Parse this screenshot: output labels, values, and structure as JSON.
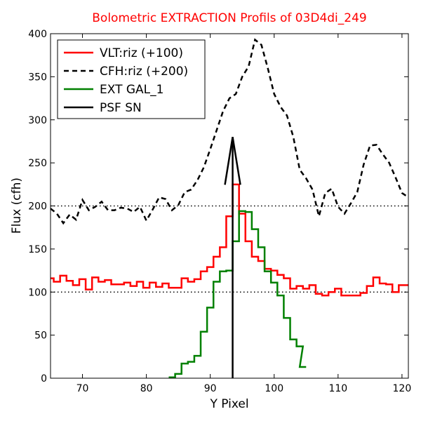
{
  "chart_data": {
    "type": "line",
    "title": "Bolometric EXTRACTION Profils of 03D4di_249",
    "xlabel": "Y Pixel",
    "ylabel": "Flux (cfh)",
    "xlim": [
      65,
      121
    ],
    "ylim": [
      0,
      400
    ],
    "x_ticks": [
      70,
      80,
      90,
      100,
      110,
      120
    ],
    "y_ticks": [
      0,
      50,
      100,
      150,
      200,
      250,
      300,
      350,
      400
    ],
    "grid": false,
    "legend_position": "top-left",
    "reference_lines": [
      {
        "y": 100,
        "style": "dotted",
        "color": "#000000"
      },
      {
        "y": 200,
        "style": "dotted",
        "color": "#000000"
      }
    ],
    "series": [
      {
        "name": "VLT:riz (+100)",
        "color": "#ff0000",
        "style": "steps",
        "x": [
          65,
          66,
          67,
          68,
          69,
          70,
          71,
          72,
          73,
          74,
          75,
          76,
          77,
          78,
          79,
          80,
          81,
          82,
          83,
          84,
          85,
          86,
          87,
          88,
          89,
          90,
          91,
          92,
          93,
          94,
          95,
          96,
          97,
          98,
          99,
          100,
          101,
          102,
          103,
          104,
          105,
          106,
          107,
          108,
          109,
          110,
          111,
          112,
          113,
          114,
          115,
          116,
          117,
          118,
          119,
          120,
          121
        ],
        "y": [
          116,
          112,
          119,
          113,
          108,
          115,
          103,
          117,
          112,
          114,
          109,
          109,
          111,
          107,
          112,
          105,
          111,
          106,
          110,
          105,
          105,
          116,
          112,
          115,
          124,
          129,
          141,
          152,
          188,
          225,
          191,
          159,
          141,
          136,
          127,
          125,
          120,
          116,
          104,
          107,
          104,
          108,
          98,
          96,
          100,
          104,
          96,
          96,
          96,
          99,
          107,
          117,
          110,
          109,
          100,
          108,
          108
        ]
      },
      {
        "name": "CFH:riz (+200)",
        "color": "#000000",
        "style": "dashed",
        "x": [
          65,
          66,
          67,
          68,
          69,
          70,
          71,
          72,
          73,
          74,
          75,
          76,
          77,
          78,
          79,
          80,
          81,
          82,
          83,
          84,
          85,
          86,
          87,
          88,
          89,
          90,
          91,
          92,
          93,
          94,
          95,
          96,
          97,
          98,
          99,
          100,
          101,
          102,
          103,
          104,
          105,
          106,
          107,
          108,
          109,
          110,
          111,
          112,
          113,
          114,
          115,
          116,
          117,
          118,
          119,
          120,
          121
        ],
        "y": [
          197,
          191,
          180,
          190,
          184,
          207,
          195,
          199,
          205,
          195,
          195,
          198,
          197,
          193,
          199,
          183,
          196,
          210,
          208,
          195,
          201,
          216,
          219,
          230,
          245,
          266,
          288,
          310,
          325,
          330,
          350,
          362,
          393,
          387,
          360,
          330,
          315,
          305,
          280,
          242,
          232,
          219,
          188,
          215,
          220,
          199,
          191,
          203,
          216,
          248,
          270,
          271,
          260,
          250,
          233,
          215,
          210
        ]
      },
      {
        "name": "EXT GAL_1",
        "color": "#008000",
        "style": "steps",
        "x": [
          84,
          85,
          86,
          87,
          88,
          89,
          90,
          91,
          92,
          93,
          94,
          95,
          96,
          97,
          98,
          99,
          100,
          101,
          102,
          103,
          104,
          104.5
        ],
        "y": [
          1,
          5,
          17,
          19,
          26,
          54,
          82,
          112,
          124,
          125,
          159,
          194,
          193,
          173,
          152,
          124,
          111,
          96,
          70,
          45,
          37,
          13
        ]
      },
      {
        "name": "PSF SN",
        "color": "#000000",
        "style": "arrow",
        "x": [
          93.5,
          93.5
        ],
        "y": [
          0,
          280
        ]
      }
    ]
  }
}
